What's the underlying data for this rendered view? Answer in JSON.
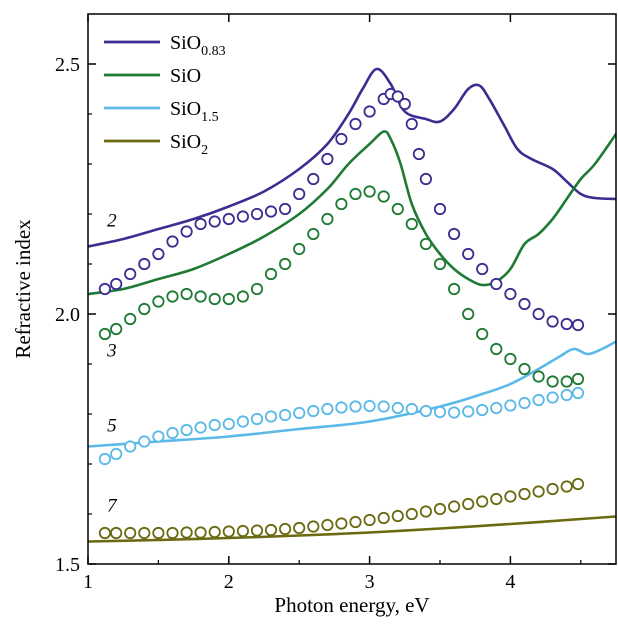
{
  "chart_data": {
    "type": "line",
    "title": "",
    "xlabel": "Photon energy, eV",
    "ylabel": "Refractive index",
    "xlim": [
      1.0,
      4.75
    ],
    "ylim": [
      1.5,
      2.6
    ],
    "x_ticks": [
      1,
      2,
      3,
      4
    ],
    "x_tick_labels": [
      "1",
      "2",
      "3",
      "4"
    ],
    "y_ticks": [
      1.5,
      2.0,
      2.5
    ],
    "y_tick_labels": [
      "1.5",
      "2.0",
      "2.5"
    ],
    "grid": false,
    "legend_position": "top-left",
    "series": [
      {
        "name": "SiO0.83",
        "legend_base": "SiO",
        "legend_sub": "0.83",
        "color": "#3a2f91",
        "label": "2",
        "line": [
          [
            1.0,
            2.135
          ],
          [
            1.25,
            2.15
          ],
          [
            1.5,
            2.17
          ],
          [
            1.75,
            2.19
          ],
          [
            2.0,
            2.215
          ],
          [
            2.25,
            2.245
          ],
          [
            2.5,
            2.29
          ],
          [
            2.7,
            2.34
          ],
          [
            2.85,
            2.4
          ],
          [
            2.95,
            2.45
          ],
          [
            3.05,
            2.49
          ],
          [
            3.15,
            2.46
          ],
          [
            3.25,
            2.405
          ],
          [
            3.4,
            2.39
          ],
          [
            3.5,
            2.385
          ],
          [
            3.6,
            2.41
          ],
          [
            3.7,
            2.45
          ],
          [
            3.78,
            2.457
          ],
          [
            3.85,
            2.43
          ],
          [
            3.95,
            2.38
          ],
          [
            4.05,
            2.33
          ],
          [
            4.15,
            2.31
          ],
          [
            4.3,
            2.29
          ],
          [
            4.4,
            2.265
          ],
          [
            4.5,
            2.24
          ],
          [
            4.6,
            2.232
          ],
          [
            4.75,
            2.23
          ]
        ],
        "points": [
          [
            1.12,
            2.05
          ],
          [
            1.2,
            2.06
          ],
          [
            1.3,
            2.08
          ],
          [
            1.4,
            2.1
          ],
          [
            1.5,
            2.12
          ],
          [
            1.6,
            2.145
          ],
          [
            1.7,
            2.165
          ],
          [
            1.8,
            2.18
          ],
          [
            1.9,
            2.185
          ],
          [
            2.0,
            2.19
          ],
          [
            2.1,
            2.195
          ],
          [
            2.2,
            2.2
          ],
          [
            2.3,
            2.205
          ],
          [
            2.4,
            2.21
          ],
          [
            2.5,
            2.24
          ],
          [
            2.6,
            2.27
          ],
          [
            2.7,
            2.31
          ],
          [
            2.8,
            2.35
          ],
          [
            2.9,
            2.38
          ],
          [
            3.0,
            2.405
          ],
          [
            3.1,
            2.43
          ],
          [
            3.15,
            2.44
          ],
          [
            3.2,
            2.435
          ],
          [
            3.25,
            2.42
          ],
          [
            3.3,
            2.38
          ],
          [
            3.35,
            2.32
          ],
          [
            3.4,
            2.27
          ],
          [
            3.5,
            2.21
          ],
          [
            3.6,
            2.16
          ],
          [
            3.7,
            2.12
          ],
          [
            3.8,
            2.09
          ],
          [
            3.9,
            2.06
          ],
          [
            4.0,
            2.04
          ],
          [
            4.1,
            2.02
          ],
          [
            4.2,
            2.0
          ],
          [
            4.3,
            1.985
          ],
          [
            4.4,
            1.98
          ],
          [
            4.48,
            1.978
          ]
        ]
      },
      {
        "name": "SiO",
        "legend_base": "SiO",
        "legend_sub": "",
        "color": "#1f7a33",
        "label": "3",
        "line": [
          [
            1.0,
            2.04
          ],
          [
            1.25,
            2.05
          ],
          [
            1.5,
            2.07
          ],
          [
            1.75,
            2.09
          ],
          [
            2.0,
            2.12
          ],
          [
            2.25,
            2.155
          ],
          [
            2.5,
            2.2
          ],
          [
            2.7,
            2.25
          ],
          [
            2.85,
            2.3
          ],
          [
            3.0,
            2.34
          ],
          [
            3.1,
            2.365
          ],
          [
            3.15,
            2.35
          ],
          [
            3.22,
            2.3
          ],
          [
            3.3,
            2.22
          ],
          [
            3.4,
            2.16
          ],
          [
            3.5,
            2.12
          ],
          [
            3.6,
            2.09
          ],
          [
            3.7,
            2.07
          ],
          [
            3.8,
            2.058
          ],
          [
            3.9,
            2.065
          ],
          [
            4.0,
            2.09
          ],
          [
            4.1,
            2.14
          ],
          [
            4.2,
            2.16
          ],
          [
            4.3,
            2.19
          ],
          [
            4.4,
            2.23
          ],
          [
            4.5,
            2.27
          ],
          [
            4.6,
            2.3
          ],
          [
            4.75,
            2.36
          ]
        ],
        "points": [
          [
            1.12,
            1.96
          ],
          [
            1.2,
            1.97
          ],
          [
            1.3,
            1.99
          ],
          [
            1.4,
            2.01
          ],
          [
            1.5,
            2.025
          ],
          [
            1.6,
            2.035
          ],
          [
            1.7,
            2.04
          ],
          [
            1.8,
            2.035
          ],
          [
            1.9,
            2.03
          ],
          [
            2.0,
            2.03
          ],
          [
            2.1,
            2.035
          ],
          [
            2.2,
            2.05
          ],
          [
            2.3,
            2.08
          ],
          [
            2.4,
            2.1
          ],
          [
            2.5,
            2.13
          ],
          [
            2.6,
            2.16
          ],
          [
            2.7,
            2.19
          ],
          [
            2.8,
            2.22
          ],
          [
            2.9,
            2.24
          ],
          [
            3.0,
            2.245
          ],
          [
            3.1,
            2.235
          ],
          [
            3.2,
            2.21
          ],
          [
            3.3,
            2.18
          ],
          [
            3.4,
            2.14
          ],
          [
            3.5,
            2.1
          ],
          [
            3.6,
            2.05
          ],
          [
            3.7,
            2.0
          ],
          [
            3.8,
            1.96
          ],
          [
            3.9,
            1.93
          ],
          [
            4.0,
            1.91
          ],
          [
            4.1,
            1.89
          ],
          [
            4.2,
            1.875
          ],
          [
            4.3,
            1.865
          ],
          [
            4.4,
            1.865
          ],
          [
            4.48,
            1.87
          ]
        ]
      },
      {
        "name": "SiO1.5",
        "legend_base": "SiO",
        "legend_sub": "1.5",
        "color": "#5bb9e8",
        "label": "5",
        "line": [
          [
            1.0,
            1.735
          ],
          [
            1.5,
            1.745
          ],
          [
            2.0,
            1.755
          ],
          [
            2.5,
            1.77
          ],
          [
            3.0,
            1.785
          ],
          [
            3.5,
            1.815
          ],
          [
            3.8,
            1.84
          ],
          [
            4.0,
            1.86
          ],
          [
            4.2,
            1.89
          ],
          [
            4.35,
            1.915
          ],
          [
            4.45,
            1.93
          ],
          [
            4.55,
            1.92
          ],
          [
            4.65,
            1.93
          ],
          [
            4.75,
            1.945
          ]
        ],
        "points": [
          [
            1.12,
            1.71
          ],
          [
            1.2,
            1.72
          ],
          [
            1.3,
            1.735
          ],
          [
            1.4,
            1.745
          ],
          [
            1.5,
            1.755
          ],
          [
            1.6,
            1.762
          ],
          [
            1.7,
            1.768
          ],
          [
            1.8,
            1.773
          ],
          [
            1.9,
            1.778
          ],
          [
            2.0,
            1.78
          ],
          [
            2.1,
            1.785
          ],
          [
            2.2,
            1.79
          ],
          [
            2.3,
            1.795
          ],
          [
            2.4,
            1.798
          ],
          [
            2.5,
            1.802
          ],
          [
            2.6,
            1.806
          ],
          [
            2.7,
            1.81
          ],
          [
            2.8,
            1.813
          ],
          [
            2.9,
            1.815
          ],
          [
            3.0,
            1.816
          ],
          [
            3.1,
            1.815
          ],
          [
            3.2,
            1.812
          ],
          [
            3.3,
            1.81
          ],
          [
            3.4,
            1.806
          ],
          [
            3.5,
            1.804
          ],
          [
            3.6,
            1.803
          ],
          [
            3.7,
            1.805
          ],
          [
            3.8,
            1.808
          ],
          [
            3.9,
            1.812
          ],
          [
            4.0,
            1.817
          ],
          [
            4.1,
            1.822
          ],
          [
            4.2,
            1.828
          ],
          [
            4.3,
            1.833
          ],
          [
            4.4,
            1.838
          ],
          [
            4.48,
            1.842
          ]
        ]
      },
      {
        "name": "SiO2",
        "legend_base": "SiO",
        "legend_sub": "2",
        "color": "#6b6a12",
        "label": "7",
        "line": [
          [
            1.0,
            1.545
          ],
          [
            1.5,
            1.548
          ],
          [
            2.0,
            1.552
          ],
          [
            2.5,
            1.557
          ],
          [
            3.0,
            1.563
          ],
          [
            3.5,
            1.571
          ],
          [
            4.0,
            1.58
          ],
          [
            4.5,
            1.59
          ],
          [
            4.75,
            1.595
          ]
        ],
        "points": [
          [
            1.12,
            1.562
          ],
          [
            1.2,
            1.562
          ],
          [
            1.3,
            1.562
          ],
          [
            1.4,
            1.562
          ],
          [
            1.5,
            1.562
          ],
          [
            1.6,
            1.562
          ],
          [
            1.7,
            1.563
          ],
          [
            1.8,
            1.563
          ],
          [
            1.9,
            1.564
          ],
          [
            2.0,
            1.565
          ],
          [
            2.1,
            1.566
          ],
          [
            2.2,
            1.567
          ],
          [
            2.3,
            1.568
          ],
          [
            2.4,
            1.57
          ],
          [
            2.5,
            1.572
          ],
          [
            2.6,
            1.575
          ],
          [
            2.7,
            1.578
          ],
          [
            2.8,
            1.581
          ],
          [
            2.9,
            1.584
          ],
          [
            3.0,
            1.588
          ],
          [
            3.1,
            1.592
          ],
          [
            3.2,
            1.596
          ],
          [
            3.3,
            1.6
          ],
          [
            3.4,
            1.605
          ],
          [
            3.5,
            1.61
          ],
          [
            3.6,
            1.615
          ],
          [
            3.7,
            1.62
          ],
          [
            3.8,
            1.625
          ],
          [
            3.9,
            1.63
          ],
          [
            4.0,
            1.635
          ],
          [
            4.1,
            1.64
          ],
          [
            4.2,
            1.645
          ],
          [
            4.3,
            1.65
          ],
          [
            4.4,
            1.655
          ],
          [
            4.48,
            1.66
          ]
        ]
      }
    ]
  }
}
